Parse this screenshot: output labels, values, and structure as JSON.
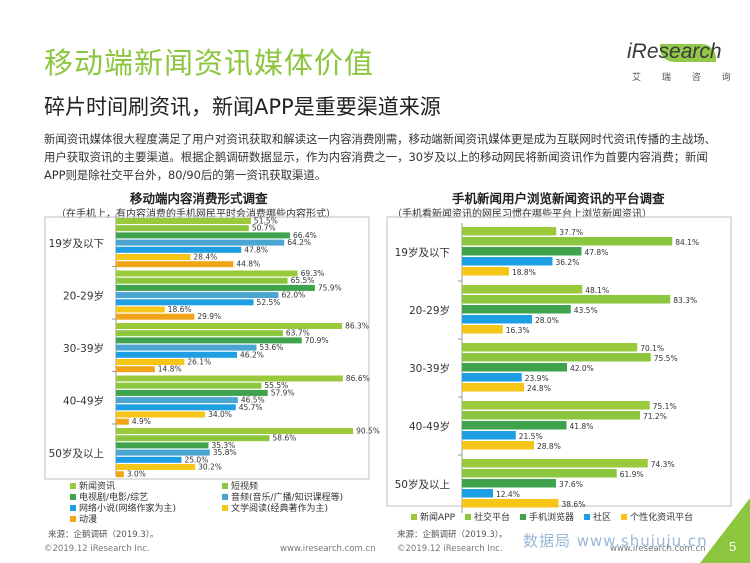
{
  "title": "移动端新闻资讯媒体价值",
  "subtitle": "碎片时间刷资讯，新闻APP是重要渠道来源",
  "logo": {
    "name": "iResearch",
    "sub": "艾 瑞 咨 询"
  },
  "intro": "新闻资讯媒体很大程度满足了用户对资讯获取和解读这一内容消费刚需，移动端新闻资讯媒体更是成为互联网时代资讯传播的主战场、用户获取资讯的主要渠道。根据企鹅调研数据显示，作为内容消费之一，30岁及以上的移动网民将新闻资讯作为首要内容消费；新闻APP则是除社交平台外，80/90后的第一资讯获取渠道。",
  "chart_data": [
    {
      "type": "bar",
      "orientation": "horizontal",
      "title": "移动端内容消费形式调查",
      "subtitle": "（在手机上，有内容消费的手机网民平时会消费哪些内容形式）",
      "categories": [
        "19岁及以下",
        "20-29岁",
        "30-39岁",
        "40-49岁",
        "50岁及以上"
      ],
      "series": [
        {
          "name": "新闻资讯",
          "color": "#9bc93c",
          "values": [
            51.5,
            69.3,
            86.3,
            86.6,
            90.5
          ]
        },
        {
          "name": "短视频",
          "color": "#8cc63f",
          "values": [
            50.7,
            65.5,
            63.7,
            55.5,
            58.6
          ]
        },
        {
          "name": "电视剧/电影/综艺",
          "color": "#3fa34d",
          "values": [
            66.4,
            75.9,
            70.9,
            57.9,
            35.3
          ]
        },
        {
          "name": "音频(音乐/广播/知识课程等)",
          "color": "#4aa6d0",
          "values": [
            64.2,
            62.0,
            53.6,
            46.5,
            35.8
          ]
        },
        {
          "name": "网络小说(网络作家为主)",
          "color": "#1f9fe3",
          "values": [
            47.8,
            52.5,
            46.2,
            45.7,
            25.0
          ]
        },
        {
          "name": "文学阅读(经典著作为主)",
          "color": "#f5c518",
          "values": [
            28.4,
            18.6,
            26.1,
            34.0,
            30.2
          ]
        },
        {
          "name": "动漫",
          "color": "#f0a519",
          "values": [
            44.8,
            29.9,
            14.8,
            4.9,
            3.0
          ]
        }
      ],
      "value_labels": [
        [
          "51.5%",
          "50.7%",
          "66.4%",
          "64.2%",
          "47.8%",
          "28.4%",
          "44.8%"
        ],
        [
          "69.3%",
          "65.5%",
          "75.9%",
          "62.0%",
          "52.5%",
          "18.6%",
          "29.9%"
        ],
        [
          "86.3%",
          "63.7%",
          "70.9%",
          "53.6%",
          "46.2%",
          "26.1%",
          "14.8%"
        ],
        [
          "86.6%",
          "55.5%",
          "57.9%",
          "46.5%",
          "45.7%",
          "34.0%",
          "4.9%"
        ],
        [
          "90.5%",
          "58.6%",
          "35.3%",
          "35.8%",
          "25.0%",
          "30.2%",
          "3.0%"
        ]
      ],
      "legend_position": "bottom",
      "source": "来源：企鹅调研（2019.3）。"
    },
    {
      "type": "bar",
      "orientation": "horizontal",
      "title": "手机新闻用户浏览新闻资讯的平台调查",
      "subtitle": "（手机看新闻资讯的网民习惯在哪些平台上浏览新闻资讯）",
      "categories": [
        "19岁及以下",
        "20-29岁",
        "30-39岁",
        "40-49岁",
        "50岁及以上"
      ],
      "series": [
        {
          "name": "新闻APP",
          "color": "#9bc93c",
          "values": [
            37.7,
            48.1,
            70.1,
            75.1,
            74.3
          ]
        },
        {
          "name": "社交平台",
          "color": "#8cc63f",
          "values": [
            84.1,
            83.3,
            75.5,
            71.2,
            61.9
          ]
        },
        {
          "name": "手机浏览器",
          "color": "#3fa34d",
          "values": [
            47.8,
            43.5,
            42.0,
            41.8,
            37.6
          ]
        },
        {
          "name": "社区",
          "color": "#1f9fe3",
          "values": [
            36.2,
            28.0,
            23.9,
            21.5,
            12.4
          ]
        },
        {
          "name": "个性化资讯平台",
          "color": "#f5c518",
          "values": [
            18.8,
            16.3,
            24.8,
            28.8,
            38.6
          ]
        }
      ],
      "value_labels": [
        [
          "37.7%",
          "84.1%",
          "47.8%",
          "36.2%",
          "18.8%"
        ],
        [
          "48.1%",
          "83.3%",
          "43.5%",
          "28.0%",
          "16.3%"
        ],
        [
          "70.1%",
          "75.5%",
          "42.0%",
          "23.9%",
          "24.8%"
        ],
        [
          "75.1%",
          "71.2%",
          "41.8%",
          "21.5%",
          "28.8%"
        ],
        [
          "74.3%",
          "61.9%",
          "37.6%",
          "12.4%",
          "38.6%"
        ]
      ],
      "legend_position": "bottom",
      "source": "来源：企鹅调研（2019.3）。"
    }
  ],
  "footer": {
    "copyright_left": "©2019.12 iResearch Inc.",
    "url_left": "www.iresearch.com.cn",
    "copyright_right": "©2019.12 iResearch Inc.",
    "url_right": "www.iresearch.com.cn",
    "watermark": "数据局 www.shujuju.cn",
    "page": "5"
  }
}
